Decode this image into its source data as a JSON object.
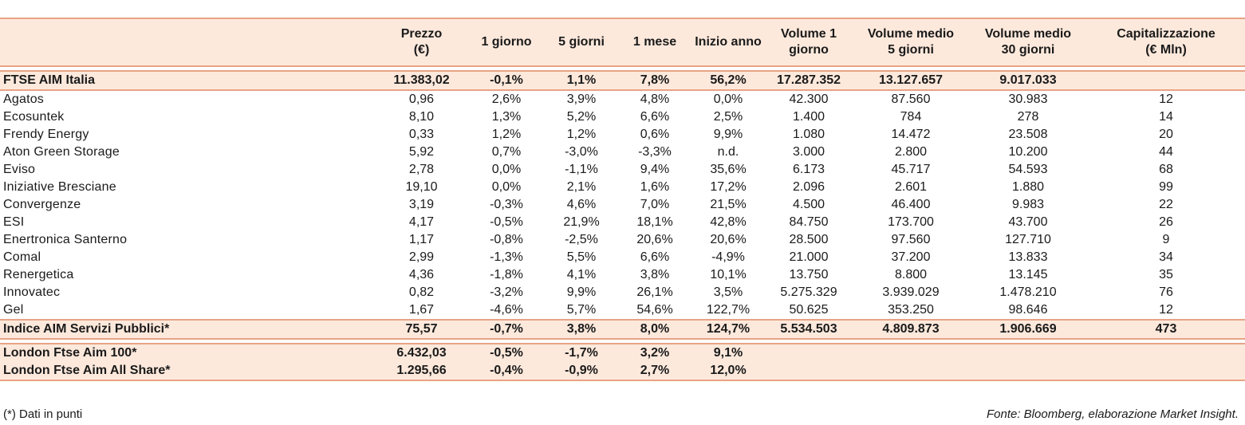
{
  "headers": [
    "",
    "Prezzo\n(€)",
    "1 giorno",
    "5 giorni",
    "1 mese",
    "Inizio anno",
    "Volume 1\ngiorno",
    "Volume medio\n5 giorni",
    "Volume medio\n30 giorni",
    "Capitalizzazione\n(€ Mln)"
  ],
  "ftse": [
    "FTSE AIM Italia",
    "11.383,02",
    "-0,1%",
    "1,1%",
    "7,8%",
    "56,2%",
    "17.287.352",
    "13.127.657",
    "9.017.033",
    ""
  ],
  "rows": [
    [
      "Agatos",
      "0,96",
      "2,6%",
      "3,9%",
      "4,8%",
      "0,0%",
      "42.300",
      "87.560",
      "30.983",
      "12"
    ],
    [
      "Ecosuntek",
      "8,10",
      "1,3%",
      "5,2%",
      "6,6%",
      "2,5%",
      "1.400",
      "784",
      "278",
      "14"
    ],
    [
      "Frendy Energy",
      "0,33",
      "1,2%",
      "1,2%",
      "0,6%",
      "9,9%",
      "1.080",
      "14.472",
      "23.508",
      "20"
    ],
    [
      "Aton Green Storage",
      "5,92",
      "0,7%",
      "-3,0%",
      "-3,3%",
      "n.d.",
      "3.000",
      "2.800",
      "10.200",
      "44"
    ],
    [
      "Eviso",
      "2,78",
      "0,0%",
      "-1,1%",
      "9,4%",
      "35,6%",
      "6.173",
      "45.717",
      "54.593",
      "68"
    ],
    [
      "Iniziative Bresciane",
      "19,10",
      "0,0%",
      "2,1%",
      "1,6%",
      "17,2%",
      "2.096",
      "2.601",
      "1.880",
      "99"
    ],
    [
      "Convergenze",
      "3,19",
      "-0,3%",
      "4,6%",
      "7,0%",
      "21,5%",
      "4.500",
      "46.400",
      "9.983",
      "22"
    ],
    [
      "ESI",
      "4,17",
      "-0,5%",
      "21,9%",
      "18,1%",
      "42,8%",
      "84.750",
      "173.700",
      "43.700",
      "26"
    ],
    [
      "Enertronica Santerno",
      "1,17",
      "-0,8%",
      "-2,5%",
      "20,6%",
      "20,6%",
      "28.500",
      "97.560",
      "127.710",
      "9"
    ],
    [
      "Comal",
      "2,99",
      "-1,3%",
      "5,5%",
      "6,6%",
      "-4,9%",
      "21.000",
      "37.200",
      "13.833",
      "34"
    ],
    [
      "Renergetica",
      "4,36",
      "-1,8%",
      "4,1%",
      "3,8%",
      "10,1%",
      "13.750",
      "8.800",
      "13.145",
      "35"
    ],
    [
      "Innovatec",
      "0,82",
      "-3,2%",
      "9,9%",
      "26,1%",
      "3,5%",
      "5.275.329",
      "3.939.029",
      "1.478.210",
      "76"
    ],
    [
      "Gel",
      "1,67",
      "-4,6%",
      "5,7%",
      "54,6%",
      "122,7%",
      "50.625",
      "353.250",
      "98.646",
      "12"
    ]
  ],
  "indice": [
    "Indice AIM Servizi Pubblici*",
    "75,57",
    "-0,7%",
    "3,8%",
    "8,0%",
    "124,7%",
    "5.534.503",
    "4.809.873",
    "1.906.669",
    "473"
  ],
  "london": [
    [
      "London Ftse Aim 100*",
      "6.432,03",
      "-0,5%",
      "-1,7%",
      "3,2%",
      "9,1%",
      "",
      "",
      "",
      ""
    ],
    [
      "London Ftse Aim All Share*",
      "1.295,66",
      "-0,4%",
      "-0,9%",
      "2,7%",
      "12,0%",
      "",
      "",
      "",
      ""
    ]
  ],
  "footer": {
    "note": "(*) Dati in punti",
    "source": "Fonte: Bloomberg, elaborazione Market Insight."
  }
}
